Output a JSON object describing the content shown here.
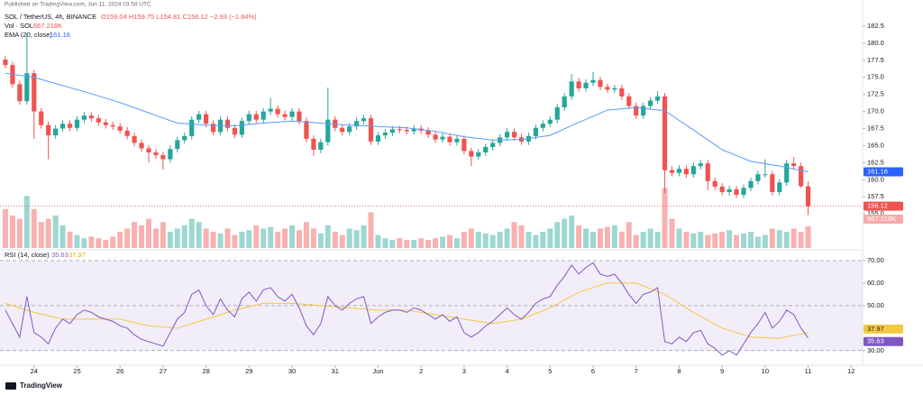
{
  "chart_data": [
    {
      "type": "candlestick",
      "publisher": "Published on TradingView.com, Jun 11, 2024 03:58 UTC",
      "title": "SOL / TetherUS, 4h, BINANCE",
      "ohlc_legend": "O159.04 H159.75 L154.81 C156.12 −2.93 (−1.84%)",
      "brand": "TradingView",
      "up_color": "#26a69a",
      "down_color": "#ef5350",
      "xlim": [
        -0.75,
        119.6
      ],
      "xticks": [
        {
          "value": 4,
          "label": "24"
        },
        {
          "value": 10,
          "label": "25"
        },
        {
          "value": 16,
          "label": "26"
        },
        {
          "value": 22,
          "label": "27"
        },
        {
          "value": 28,
          "label": "28"
        },
        {
          "value": 34,
          "label": "29"
        },
        {
          "value": 40,
          "label": "30"
        },
        {
          "value": 46,
          "label": "31"
        },
        {
          "value": 52,
          "label": "Jun"
        },
        {
          "value": 58,
          "label": "2"
        },
        {
          "value": 64,
          "label": "3"
        },
        {
          "value": 70,
          "label": "4"
        },
        {
          "value": 76,
          "label": "5"
        },
        {
          "value": 82,
          "label": "6"
        },
        {
          "value": 88,
          "label": "7"
        },
        {
          "value": 94,
          "label": "8"
        },
        {
          "value": 100,
          "label": "9"
        },
        {
          "value": 106,
          "label": "10"
        },
        {
          "value": 112,
          "label": "11"
        },
        {
          "value": 118,
          "label": "12"
        }
      ],
      "ylim": [
        150,
        186.33
      ],
      "yticks": [
        182.5,
        {
          "value": 180,
          "label": "180.0"
        },
        177.5,
        {
          "value": 175,
          "label": "175.0"
        },
        172.5,
        {
          "value": 170,
          "label": "170.0"
        },
        167.5,
        {
          "value": 165,
          "label": "165.0"
        },
        162.5,
        {
          "value": 160,
          "label": "160.0"
        },
        157.5,
        {
          "value": 155,
          "label": "155.0"
        }
      ],
      "open": [
        177.6,
        176.8,
        174,
        171.5,
        175.6,
        170,
        168,
        166.5,
        167.5,
        168.2,
        167.6,
        168.8,
        169.4,
        169.0,
        168.4,
        168.0,
        167.8,
        167.2,
        166.4,
        165.4,
        164.6,
        164.0,
        163.6,
        163.0,
        164.5,
        165.8,
        166.4,
        168.8,
        169.6,
        168.2,
        167.0,
        168.8,
        167.6,
        166.6,
        168.6,
        169.6,
        168.8,
        170.0,
        170.4,
        169.6,
        169.2,
        170.0,
        168.6,
        166.0,
        164.4,
        165.5,
        168.8,
        167.6,
        167.0,
        167.8,
        168.6,
        169.0,
        165.6,
        166.5,
        166.9,
        167.4,
        167.3,
        167.1,
        167.5,
        167.2,
        166.6,
        165.9,
        166.3,
        165.5,
        166.0,
        164.2,
        163.4,
        164.0,
        164.8,
        165.4,
        166.2,
        167.0,
        166.2,
        165.6,
        166.4,
        167.6,
        168.2,
        168.8,
        170.6,
        172.2,
        174.4,
        173.4,
        174.2,
        174.6,
        173.6,
        173.2,
        173.4,
        172.2,
        170.8,
        169.4,
        170.8,
        171.6,
        172.2,
        161.4,
        161.0,
        161.6,
        160.8,
        162.0,
        162.4,
        159.8,
        159.0,
        158.2,
        158.6,
        157.8,
        158.8,
        159.8,
        160.8,
        160.8,
        158.2,
        159.6,
        162.4,
        162.0,
        159.04
      ],
      "high": [
        178.1,
        177.3,
        174.5,
        181.5,
        176.1,
        170.5,
        168.5,
        168.0,
        168.7,
        168.7,
        169.3,
        169.9,
        169.9,
        169.5,
        168.9,
        168.5,
        168.3,
        167.7,
        166.9,
        165.9,
        165.1,
        164.5,
        164.1,
        165.0,
        166.3,
        166.9,
        169.3,
        170.1,
        170.1,
        168.7,
        169.3,
        169.3,
        168.1,
        169.1,
        170.1,
        170.1,
        170.5,
        172.0,
        170.9,
        170.1,
        170.5,
        170.5,
        169.1,
        166.5,
        166.0,
        173.5,
        169.3,
        168.1,
        168.3,
        169.1,
        169.5,
        169.5,
        167.0,
        167.4,
        167.9,
        167.9,
        167.8,
        168.0,
        168.0,
        167.7,
        167.1,
        166.8,
        166.8,
        166.5,
        166.5,
        164.7,
        164.5,
        165.3,
        165.9,
        166.7,
        167.5,
        167.5,
        166.7,
        166.9,
        168.1,
        168.7,
        169.3,
        171.1,
        172.7,
        175.5,
        174.9,
        174.7,
        175.8,
        175.1,
        174.1,
        173.9,
        173.9,
        172.7,
        171.3,
        171.3,
        172.1,
        173.0,
        172.7,
        162.0,
        162.1,
        162.1,
        162.5,
        162.9,
        162.9,
        160.3,
        159.5,
        159.1,
        159.1,
        159.3,
        160.3,
        161.3,
        163.0,
        161.3,
        160.1,
        162.9,
        163.3,
        162.5,
        159.75
      ],
      "low": [
        176.3,
        173.5,
        171.0,
        171.0,
        166.0,
        167.5,
        163.0,
        166.0,
        167.0,
        167.1,
        167.1,
        168.3,
        168.5,
        167.9,
        167.5,
        167.3,
        166.7,
        165.9,
        164.9,
        164.1,
        162.5,
        163.1,
        161.5,
        162.5,
        164.0,
        165.3,
        165.9,
        168.3,
        167.7,
        166.5,
        166.5,
        167.1,
        166.1,
        166.1,
        168.1,
        168.3,
        168.3,
        169.5,
        169.1,
        168.7,
        168.7,
        168.1,
        165.5,
        163.5,
        163.9,
        165.0,
        167.1,
        166.5,
        166.5,
        167.3,
        168.1,
        165.1,
        165.1,
        166.0,
        166.4,
        166.8,
        166.6,
        166.6,
        166.7,
        166.1,
        165.4,
        165.4,
        165.0,
        165.0,
        163.7,
        162.0,
        162.9,
        163.5,
        164.3,
        164.9,
        165.7,
        165.7,
        165.1,
        165.1,
        165.9,
        167.1,
        167.7,
        168.3,
        170.1,
        171.7,
        172.9,
        172.9,
        173.7,
        173.1,
        172.7,
        172.7,
        171.7,
        170.3,
        168.9,
        168.9,
        170.3,
        171.1,
        158.0,
        160.5,
        160.5,
        160.3,
        160.3,
        161.5,
        158.5,
        158.5,
        157.7,
        157.7,
        157.3,
        157.3,
        158.3,
        159.3,
        160.3,
        157.7,
        157.7,
        159.1,
        161.5,
        158.8,
        154.81
      ],
      "close": [
        176.8,
        174,
        171.5,
        175.6,
        170,
        168,
        166.5,
        167.5,
        168.2,
        167.6,
        168.8,
        169.4,
        169.0,
        168.4,
        168.0,
        167.8,
        167.2,
        166.4,
        165.4,
        164.6,
        164.0,
        163.6,
        163.0,
        164.5,
        165.8,
        166.4,
        168.8,
        169.6,
        168.2,
        167.0,
        168.8,
        167.6,
        166.6,
        168.6,
        169.6,
        168.8,
        170.0,
        170.4,
        169.6,
        169.2,
        170.0,
        168.6,
        166.0,
        164.4,
        165.5,
        168.8,
        167.6,
        167.0,
        167.8,
        168.6,
        169.0,
        165.6,
        166.5,
        166.9,
        167.4,
        167.3,
        167.1,
        167.5,
        167.2,
        166.6,
        165.9,
        166.3,
        165.5,
        166.0,
        164.2,
        163.4,
        164.0,
        164.8,
        165.4,
        166.2,
        167.0,
        166.2,
        165.6,
        166.4,
        167.6,
        168.2,
        168.8,
        170.6,
        172.2,
        174.4,
        173.4,
        174.2,
        174.6,
        173.6,
        173.2,
        173.4,
        172.2,
        170.8,
        169.4,
        170.8,
        171.6,
        172.2,
        161.4,
        161.0,
        161.6,
        160.8,
        162.0,
        162.4,
        159.8,
        159.0,
        158.2,
        158.6,
        157.8,
        158.8,
        159.8,
        160.8,
        160.8,
        158.2,
        159.6,
        162.4,
        162.0,
        159.05,
        156.12
      ],
      "ema": {
        "name": "EMA (20, close)",
        "color": "#5b9cf6",
        "x": [
          0,
          4,
          8,
          12,
          16,
          20,
          24,
          28,
          32,
          36,
          40,
          44,
          48,
          52,
          56,
          60,
          64,
          68,
          72,
          76,
          80,
          84,
          88,
          92,
          96,
          100,
          104,
          108,
          112
        ],
        "values": [
          175.6,
          175.0,
          173.8,
          172.6,
          171.3,
          169.8,
          168.3,
          168.0,
          167.9,
          168.3,
          168.6,
          168.3,
          168.0,
          167.8,
          167.6,
          167.1,
          166.3,
          165.8,
          165.9,
          166.5,
          168.4,
          170.2,
          170.6,
          170.1,
          167.3,
          164.4,
          162.7,
          162.0,
          161.16
        ]
      },
      "volume": {
        "name": "Vol · SOL",
        "value_label": "667.218K",
        "vlim": [
          0,
          2000
        ],
        "values": [
          1200,
          1000,
          900,
          1600,
          1200,
          800,
          900,
          1000,
          700,
          500,
          400,
          300,
          350,
          300,
          250,
          350,
          500,
          600,
          800,
          700,
          900,
          600,
          800,
          500,
          600,
          700,
          900,
          800,
          600,
          500,
          450,
          600,
          400,
          500,
          550,
          700,
          600,
          650,
          500,
          600,
          700,
          550,
          800,
          600,
          450,
          700,
          500,
          400,
          600,
          550,
          700,
          1100,
          400,
          300,
          250,
          300,
          250,
          250,
          300,
          250,
          300,
          350,
          400,
          300,
          500,
          600,
          500,
          450,
          400,
          500,
          600,
          800,
          700,
          500,
          400,
          500,
          600,
          800,
          900,
          1000,
          700,
          600,
          500,
          600,
          650,
          700,
          500,
          800,
          400,
          500,
          600,
          500,
          1850,
          900,
          600,
          500,
          450,
          500,
          400,
          450,
          500,
          550,
          400,
          450,
          500,
          350,
          400,
          600,
          550,
          500,
          600,
          500,
          667.218
        ]
      }
    },
    {
      "type": "line",
      "name": "RSI (14, close)",
      "ylim": [
        23.5,
        74
      ],
      "yticks": [
        {
          "value": 70,
          "label": "70.00"
        },
        {
          "value": 60,
          "label": "60.00"
        },
        {
          "value": 50,
          "label": "50.00"
        },
        {
          "value": 30,
          "label": "30.00"
        }
      ],
      "levels": [
        70,
        50,
        30
      ],
      "series": [
        {
          "color": "#7e57c2",
          "values": [
            48,
            42,
            36,
            54,
            38,
            36,
            33,
            40,
            44,
            42,
            46,
            48,
            47,
            45,
            44,
            43,
            41,
            40,
            37,
            35,
            34,
            33,
            32,
            38,
            44,
            47,
            55,
            57,
            50,
            46,
            53,
            48,
            45,
            53,
            56,
            52,
            57,
            58,
            54,
            52,
            55,
            49,
            41,
            37,
            42,
            54,
            50,
            48,
            51,
            53,
            54,
            42,
            45,
            47,
            48,
            48,
            47,
            49,
            48,
            46,
            44,
            46,
            43,
            45,
            38,
            36,
            38,
            41,
            43,
            46,
            49,
            46,
            44,
            47,
            51,
            53,
            54,
            59,
            63,
            68,
            64,
            67,
            69,
            64,
            63,
            64,
            60,
            55,
            51,
            55,
            56,
            58,
            34,
            33,
            36,
            34,
            38,
            39,
            33,
            31,
            28,
            30,
            28,
            33,
            38,
            42,
            47,
            40,
            43,
            48,
            46,
            40,
            35.63
          ]
        },
        {
          "color": "#f5c842",
          "x": [
            0,
            4,
            8,
            12,
            16,
            20,
            24,
            28,
            32,
            36,
            40,
            44,
            48,
            52,
            56,
            60,
            64,
            68,
            72,
            76,
            80,
            84,
            88,
            92,
            96,
            100,
            104,
            108,
            112
          ],
          "values": [
            51,
            47,
            44,
            44,
            44,
            41,
            40,
            44,
            48,
            51,
            51,
            50,
            49,
            48,
            48,
            46,
            44,
            42,
            44,
            49,
            56,
            60,
            60,
            55,
            47,
            40,
            36,
            35.5,
            37.97
          ]
        }
      ]
    }
  ]
}
